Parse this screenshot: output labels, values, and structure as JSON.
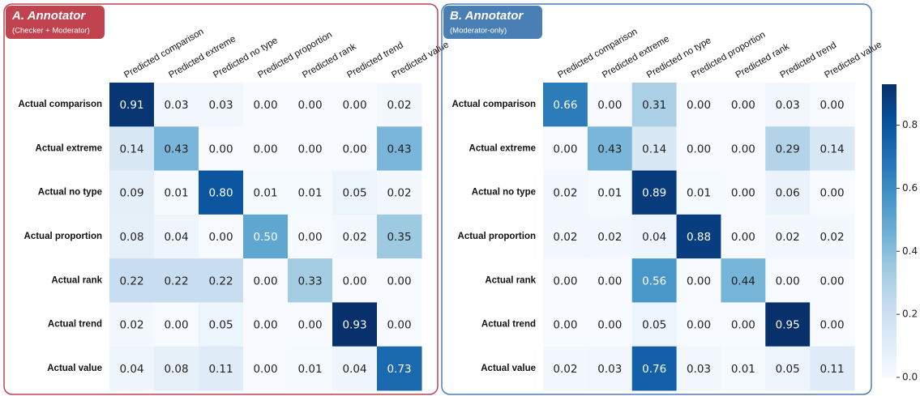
{
  "chart_data": [
    {
      "type": "heatmap",
      "title": "A. Annotator",
      "subtitle": "(Checker + Moderator)",
      "color": "#c0434f",
      "x_categories": [
        "Predicted comparison",
        "Predicted extreme",
        "Predicted no type",
        "Predicted proportion",
        "Predicted rank",
        "Predicted trend",
        "Predicted value"
      ],
      "y_categories": [
        "Actual comparison",
        "Actual extreme",
        "Actual no type",
        "Actual proportion",
        "Actual rank",
        "Actual trend",
        "Actual value"
      ],
      "values": [
        [
          0.91,
          0.03,
          0.03,
          0,
          0,
          0,
          0.02
        ],
        [
          0.14,
          0.43,
          0,
          0,
          0,
          0,
          0.43
        ],
        [
          0.09,
          0.01,
          0.8,
          0.01,
          0.01,
          0.05,
          0.02
        ],
        [
          0.08,
          0.04,
          0,
          0.5,
          0,
          0.02,
          0.35
        ],
        [
          0.22,
          0.22,
          0.22,
          0,
          0.33,
          0,
          0
        ],
        [
          0.02,
          0,
          0.05,
          0,
          0,
          0.93,
          0
        ],
        [
          0.04,
          0.08,
          0.11,
          0,
          0.01,
          0.04,
          0.73
        ]
      ],
      "value_labels": [
        [
          "0.91",
          "0.03",
          "0.03",
          "0.00",
          "0.00",
          "0.00",
          "0.02"
        ],
        [
          "0.14",
          "0.43",
          "0.00",
          "0.00",
          "0.00",
          "0.00",
          "0.43"
        ],
        [
          "0.09",
          "0.01",
          "0.80",
          "0.01",
          "0.01",
          "0.05",
          "0.02"
        ],
        [
          "0.08",
          "0.04",
          "0.00",
          "0.50",
          "0.00",
          "0.02",
          "0.35"
        ],
        [
          "0.22",
          "0.22",
          "0.22",
          "0.00",
          "0.33",
          "0.00",
          "0.00"
        ],
        [
          "0.02",
          "0.00",
          "0.05",
          "0.00",
          "0.00",
          "0.93",
          "0.00"
        ],
        [
          "0.04",
          "0.08",
          "0.11",
          "0.00",
          "0.01",
          "0.04",
          "0.73"
        ]
      ]
    },
    {
      "type": "heatmap",
      "title": "B. Annotator",
      "subtitle": "(Moderator-only)",
      "color": "#4a7fb5",
      "x_categories": [
        "Predicted comparison",
        "Predicted extreme",
        "Predicted no type",
        "Predicted proportion",
        "Predicted rank",
        "Predicted trend",
        "Predicted value"
      ],
      "y_categories": [
        "Actual comparison",
        "Actual extreme",
        "Actual no type",
        "Actual proportion",
        "Actual rank",
        "Actual trend",
        "Actual value"
      ],
      "values": [
        [
          0.66,
          0,
          0.31,
          0,
          0,
          0.03,
          0
        ],
        [
          0,
          0.43,
          0.14,
          0,
          0,
          0.29,
          0.14
        ],
        [
          0.02,
          0.01,
          0.89,
          0.01,
          0,
          0.06,
          0
        ],
        [
          0.02,
          0.02,
          0.04,
          0.88,
          0,
          0.02,
          0.02
        ],
        [
          0,
          0,
          0.56,
          0,
          0.44,
          0,
          0
        ],
        [
          0,
          0,
          0.05,
          0,
          0,
          0.95,
          0
        ],
        [
          0.02,
          0.03,
          0.76,
          0.03,
          0.01,
          0.05,
          0.11
        ]
      ],
      "value_labels": [
        [
          "0.66",
          "0.00",
          "0.31",
          "0.00",
          "0.00",
          "0.03",
          "0.00"
        ],
        [
          "0.00",
          "0.43",
          "0.14",
          "0.00",
          "0.00",
          "0.29",
          "0.14"
        ],
        [
          "0.02",
          "0.01",
          "0.89",
          "0.01",
          "0.00",
          "0.06",
          "0.00"
        ],
        [
          "0.02",
          "0.02",
          "0.04",
          "0.88",
          "0.00",
          "0.02",
          "0.02"
        ],
        [
          "0.00",
          "0.00",
          "0.56",
          "0.00",
          "0.44",
          "0.00",
          "0.00"
        ],
        [
          "0.00",
          "0.00",
          "0.05",
          "0.00",
          "0.00",
          "0.95",
          "0.00"
        ],
        [
          "0.02",
          "0.03",
          "0.76",
          "0.03",
          "0.01",
          "0.05",
          "0.11"
        ]
      ]
    }
  ],
  "colorbar": {
    "colormap": "Blues",
    "lim": [
      0,
      0.93
    ],
    "ticks": [
      {
        "value": 0,
        "label": "0.0"
      },
      {
        "value": 0.2,
        "label": "0.2"
      },
      {
        "value": 0.4,
        "label": "0.4"
      },
      {
        "value": 0.6,
        "label": "0.6"
      },
      {
        "value": 0.8,
        "label": "0.8"
      }
    ]
  }
}
